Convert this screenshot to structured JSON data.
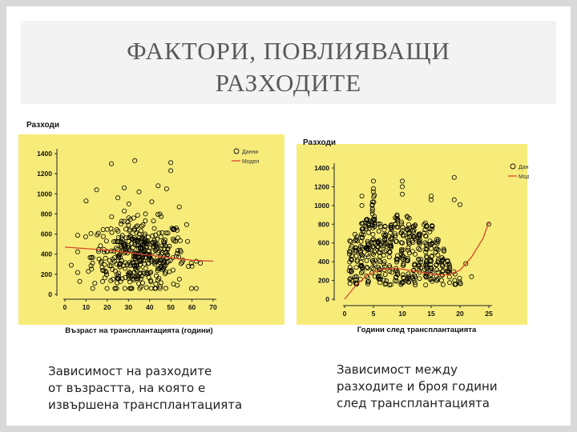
{
  "slide": {
    "title_line1": "ФАКТОРИ, ПОВЛИЯВАЩИ",
    "title_line2": "РАЗХОДИТЕ",
    "caption_left": [
      "Зависимост на разходите",
      "от възрастта, на която е",
      "извършена трансплантацията"
    ],
    "caption_right": [
      "Зависимост между",
      "разходите и броя години",
      "след трансплантацията"
    ]
  },
  "colors": {
    "plot_bg": "#f7ec7a",
    "point": "#000000",
    "model_line": "#d9442a",
    "slide_bg": "#ffffff",
    "frame": "#d9d9d9"
  },
  "chart_data": [
    {
      "type": "scatter",
      "ylabel": "Разходи",
      "xlabel": "Възраст на трансплантацията (години)",
      "xlim": [
        0,
        70
      ],
      "ylim": [
        0,
        1400
      ],
      "xticks": [
        "0",
        "10",
        "20",
        "30",
        "40",
        "50",
        "60",
        "70"
      ],
      "yticks": [
        "0",
        "200",
        "400",
        "600",
        "800",
        "1000",
        "1200",
        "1400"
      ],
      "legend": {
        "position": "top-right",
        "entries": [
          "Данни",
          "Модел"
        ]
      },
      "grid": false,
      "series": [
        {
          "name": "Данни",
          "kind": "points",
          "cluster": {
            "x_mean": 35,
            "x_sd": 11,
            "y_mean": 380,
            "y_sd": 180,
            "n": 420
          }
        },
        {
          "name": "Модел",
          "kind": "line",
          "points": [
            [
              0,
              470
            ],
            [
              20,
              440
            ],
            [
              40,
              390
            ],
            [
              60,
              340
            ],
            [
              70,
              330
            ]
          ]
        }
      ],
      "outliers": [
        [
          22,
          1300
        ],
        [
          33,
          1330
        ],
        [
          50,
          1310
        ],
        [
          50,
          1230
        ],
        [
          15,
          1040
        ],
        [
          28,
          1060
        ],
        [
          35,
          1020
        ],
        [
          44,
          1080
        ],
        [
          48,
          1050
        ],
        [
          10,
          930
        ],
        [
          25,
          960
        ],
        [
          41,
          920
        ],
        [
          54,
          870
        ],
        [
          60,
          280
        ],
        [
          64,
          310
        ],
        [
          3,
          290
        ],
        [
          7,
          130
        ]
      ]
    },
    {
      "type": "scatter",
      "ylabel": "Разходи",
      "xlabel": "Години след трансплантацията",
      "xlim": [
        0,
        25
      ],
      "ylim": [
        0,
        1400
      ],
      "xticks": [
        "0",
        "5",
        "10",
        "15",
        "20",
        "25"
      ],
      "yticks": [
        "0",
        "200",
        "400",
        "600",
        "800",
        "1000",
        "1200",
        "1400"
      ],
      "legend": {
        "position": "top-right",
        "entries": [
          "Данни",
          "Модел"
        ]
      },
      "grid": false,
      "series": [
        {
          "name": "Данни",
          "kind": "columns",
          "columns": [
            [
              1,
              150,
              650
            ],
            [
              2,
              150,
              700
            ],
            [
              3,
              150,
              850
            ],
            [
              4,
              150,
              950
            ],
            [
              5,
              150,
              1150
            ],
            [
              6,
              150,
              900
            ],
            [
              7,
              150,
              780
            ],
            [
              8,
              150,
              800
            ],
            [
              9,
              150,
              900
            ],
            [
              10,
              150,
              850
            ],
            [
              11,
              150,
              900
            ],
            [
              12,
              150,
              800
            ],
            [
              13,
              150,
              700
            ],
            [
              14,
              150,
              900
            ],
            [
              15,
              150,
              850
            ],
            [
              16,
              150,
              650
            ],
            [
              17,
              150,
              550
            ],
            [
              18,
              150,
              450
            ],
            [
              19,
              150,
              300
            ],
            [
              20,
              150,
              250
            ]
          ]
        },
        {
          "name": "Модел",
          "kind": "line",
          "points": [
            [
              0,
              0
            ],
            [
              2,
              150
            ],
            [
              4,
              260
            ],
            [
              6,
              310
            ],
            [
              8,
              330
            ],
            [
              10,
              320
            ],
            [
              12,
              300
            ],
            [
              14,
              280
            ],
            [
              16,
              260
            ],
            [
              18,
              260
            ],
            [
              20,
              310
            ],
            [
              22,
              450
            ],
            [
              24,
              650
            ],
            [
              25,
              820
            ]
          ]
        }
      ],
      "outliers": [
        [
          3,
          1100
        ],
        [
          3,
          1000
        ],
        [
          5,
          1260
        ],
        [
          5,
          1180
        ],
        [
          10,
          1260
        ],
        [
          10,
          1200
        ],
        [
          10,
          1120
        ],
        [
          15,
          1060
        ],
        [
          15,
          1100
        ],
        [
          19,
          1300
        ],
        [
          19,
          1060
        ],
        [
          20,
          1010
        ],
        [
          21,
          380
        ],
        [
          22,
          240
        ],
        [
          25,
          800
        ]
      ]
    }
  ]
}
